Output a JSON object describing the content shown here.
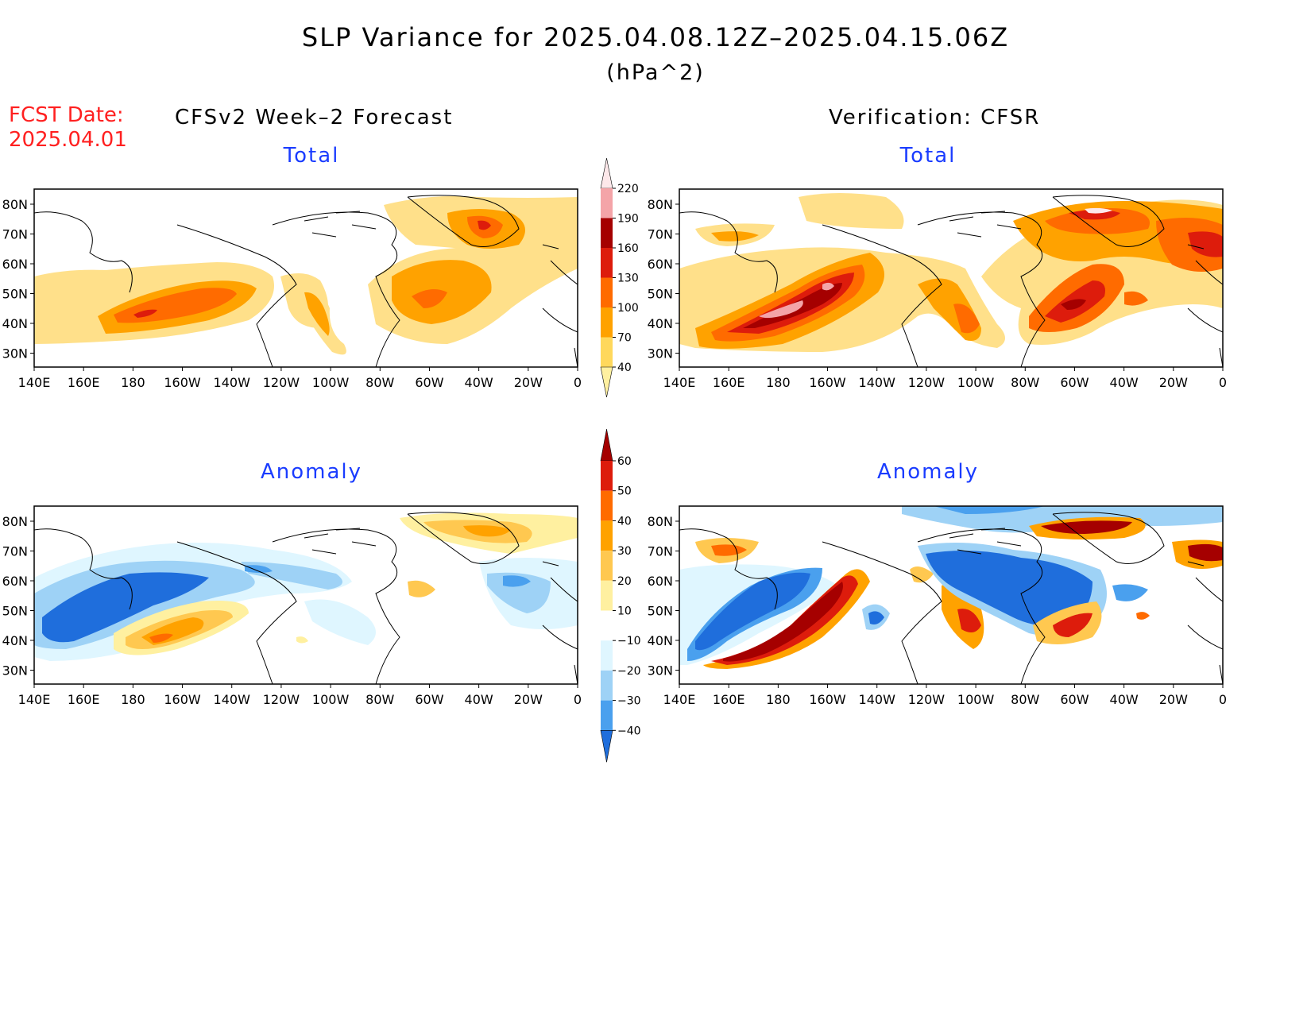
{
  "header": {
    "title": "SLP Variance for 2025.04.08.12Z–2025.04.15.06Z",
    "units": "(hPa^2)",
    "fcst_label": "FCST Date:",
    "fcst_date": "2025.04.01",
    "left_heading": "CFSv2 Week–2 Forecast",
    "right_heading": "Verification: CFSR"
  },
  "panels": {
    "top_left_label": "Total",
    "top_right_label": "Total",
    "bottom_left_label": "Anomaly",
    "bottom_right_label": "Anomaly"
  },
  "axes": {
    "lat_ticks": [
      "80N",
      "70N",
      "60N",
      "50N",
      "40N",
      "30N"
    ],
    "lon_ticks": [
      "140E",
      "160E",
      "180",
      "160W",
      "140W",
      "120W",
      "100W",
      "80W",
      "60W",
      "40W",
      "20W",
      "0"
    ]
  },
  "colorbars": {
    "total": {
      "labels": [
        "220",
        "190",
        "160",
        "130",
        "100",
        "70",
        "40"
      ],
      "colors": [
        "#fde8ea",
        "#f4a4a8",
        "#a50000",
        "#dd1c0c",
        "#ff6b00",
        "#ffa200",
        "#ffd85c",
        "#fff0a0"
      ]
    },
    "anomaly": {
      "labels": [
        "60",
        "50",
        "40",
        "30",
        "20",
        "10",
        "−10",
        "−20",
        "−30",
        "−40"
      ],
      "colors": [
        "#a50000",
        "#dd1c0c",
        "#ff6b00",
        "#ffa200",
        "#ffc850",
        "#fff0a0",
        "#ffffff",
        "#dff6ff",
        "#9ed2f6",
        "#4aa0ee",
        "#1f6edc"
      ]
    }
  }
}
